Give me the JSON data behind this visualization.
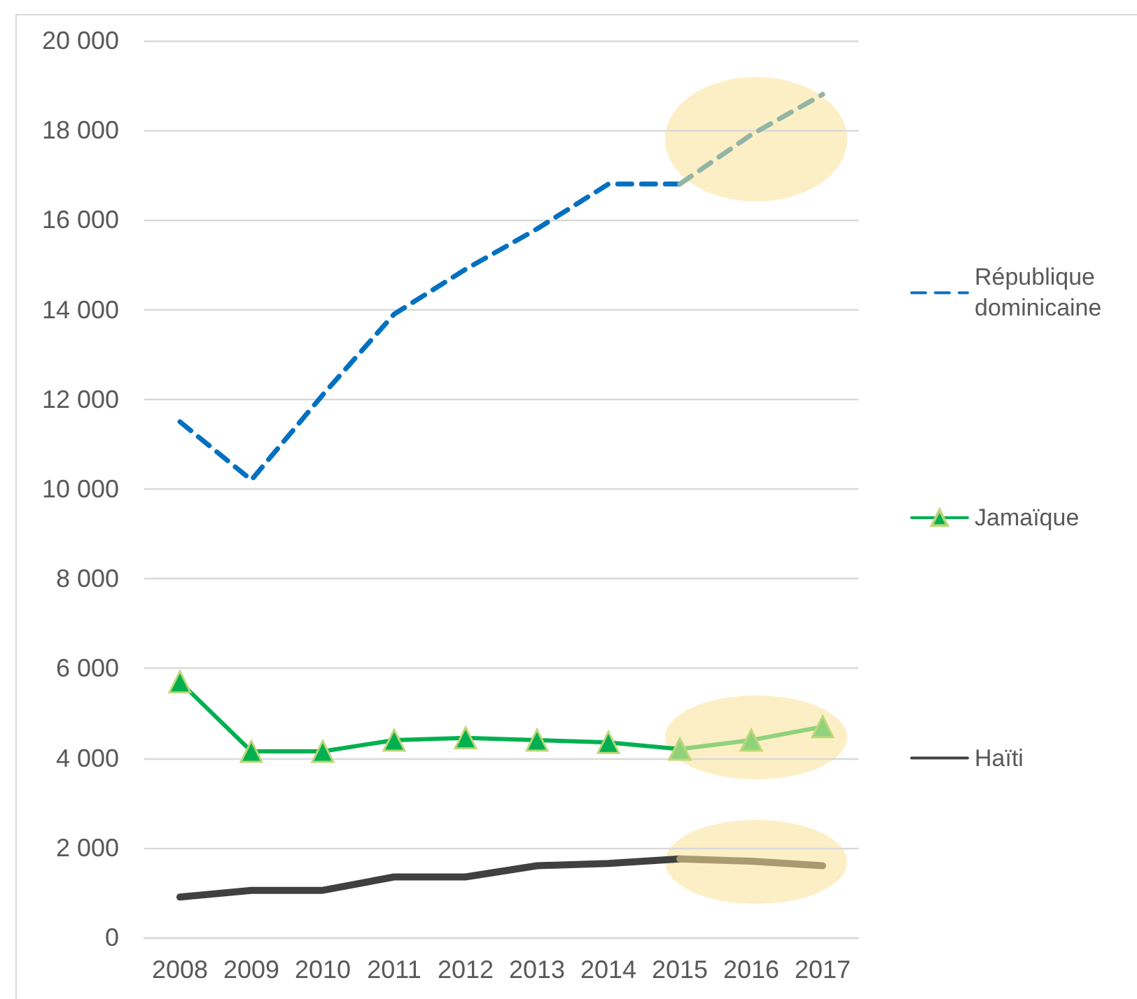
{
  "chart_data": {
    "type": "line",
    "categories": [
      "2008",
      "2009",
      "2010",
      "2011",
      "2012",
      "2013",
      "2014",
      "2015",
      "2016",
      "2017"
    ],
    "series": [
      {
        "name": "République dominicaine",
        "color": "#0070c0",
        "line_style": "dashed",
        "marker": "none",
        "values": [
          11500,
          10200,
          12100,
          13900,
          14900,
          15800,
          16800,
          16800,
          null,
          null
        ]
      },
      {
        "color": "#93b5a6",
        "line_style": "dashed",
        "marker": "none",
        "values": [
          null,
          null,
          null,
          null,
          null,
          null,
          null,
          16800,
          17900,
          18800
        ]
      },
      {
        "name": "Jamaïque",
        "color": "#00b050",
        "line_style": "solid",
        "marker": "triangle",
        "values": [
          5700,
          4150,
          4150,
          4400,
          4450,
          4400,
          4350,
          4200,
          null,
          null
        ]
      },
      {
        "color": "#8fd27c",
        "line_style": "solid",
        "marker": "triangle",
        "values": [
          null,
          null,
          null,
          null,
          null,
          null,
          null,
          4200,
          4400,
          4700
        ]
      },
      {
        "name": "Haïti",
        "color": "#404040",
        "line_style": "solid",
        "marker": "none",
        "values": [
          900,
          1050,
          1050,
          1350,
          1350,
          1600,
          1650,
          1750,
          null,
          null
        ]
      },
      {
        "color": "#a99a70",
        "line_style": "solid",
        "marker": "none",
        "values": [
          null,
          null,
          null,
          null,
          null,
          null,
          null,
          1750,
          1700,
          1600
        ]
      }
    ],
    "ylim": [
      0,
      20000
    ],
    "yticks": [
      0,
      {
        "value": 2000,
        "label": "2 000"
      },
      {
        "value": 4000,
        "label": "4 000"
      },
      {
        "value": 6000,
        "label": "6 000"
      },
      {
        "value": 8000,
        "label": "8 000"
      },
      {
        "value": 10000,
        "label": "10 000"
      },
      {
        "value": 12000,
        "label": "12 000"
      },
      {
        "value": 14000,
        "label": "14 000"
      },
      {
        "value": 16000,
        "label": "16 000"
      },
      {
        "value": 18000,
        "label": "18 000"
      },
      {
        "value": 20000,
        "label": "20 000"
      }
    ],
    "grid": "y",
    "legend": "right"
  }
}
